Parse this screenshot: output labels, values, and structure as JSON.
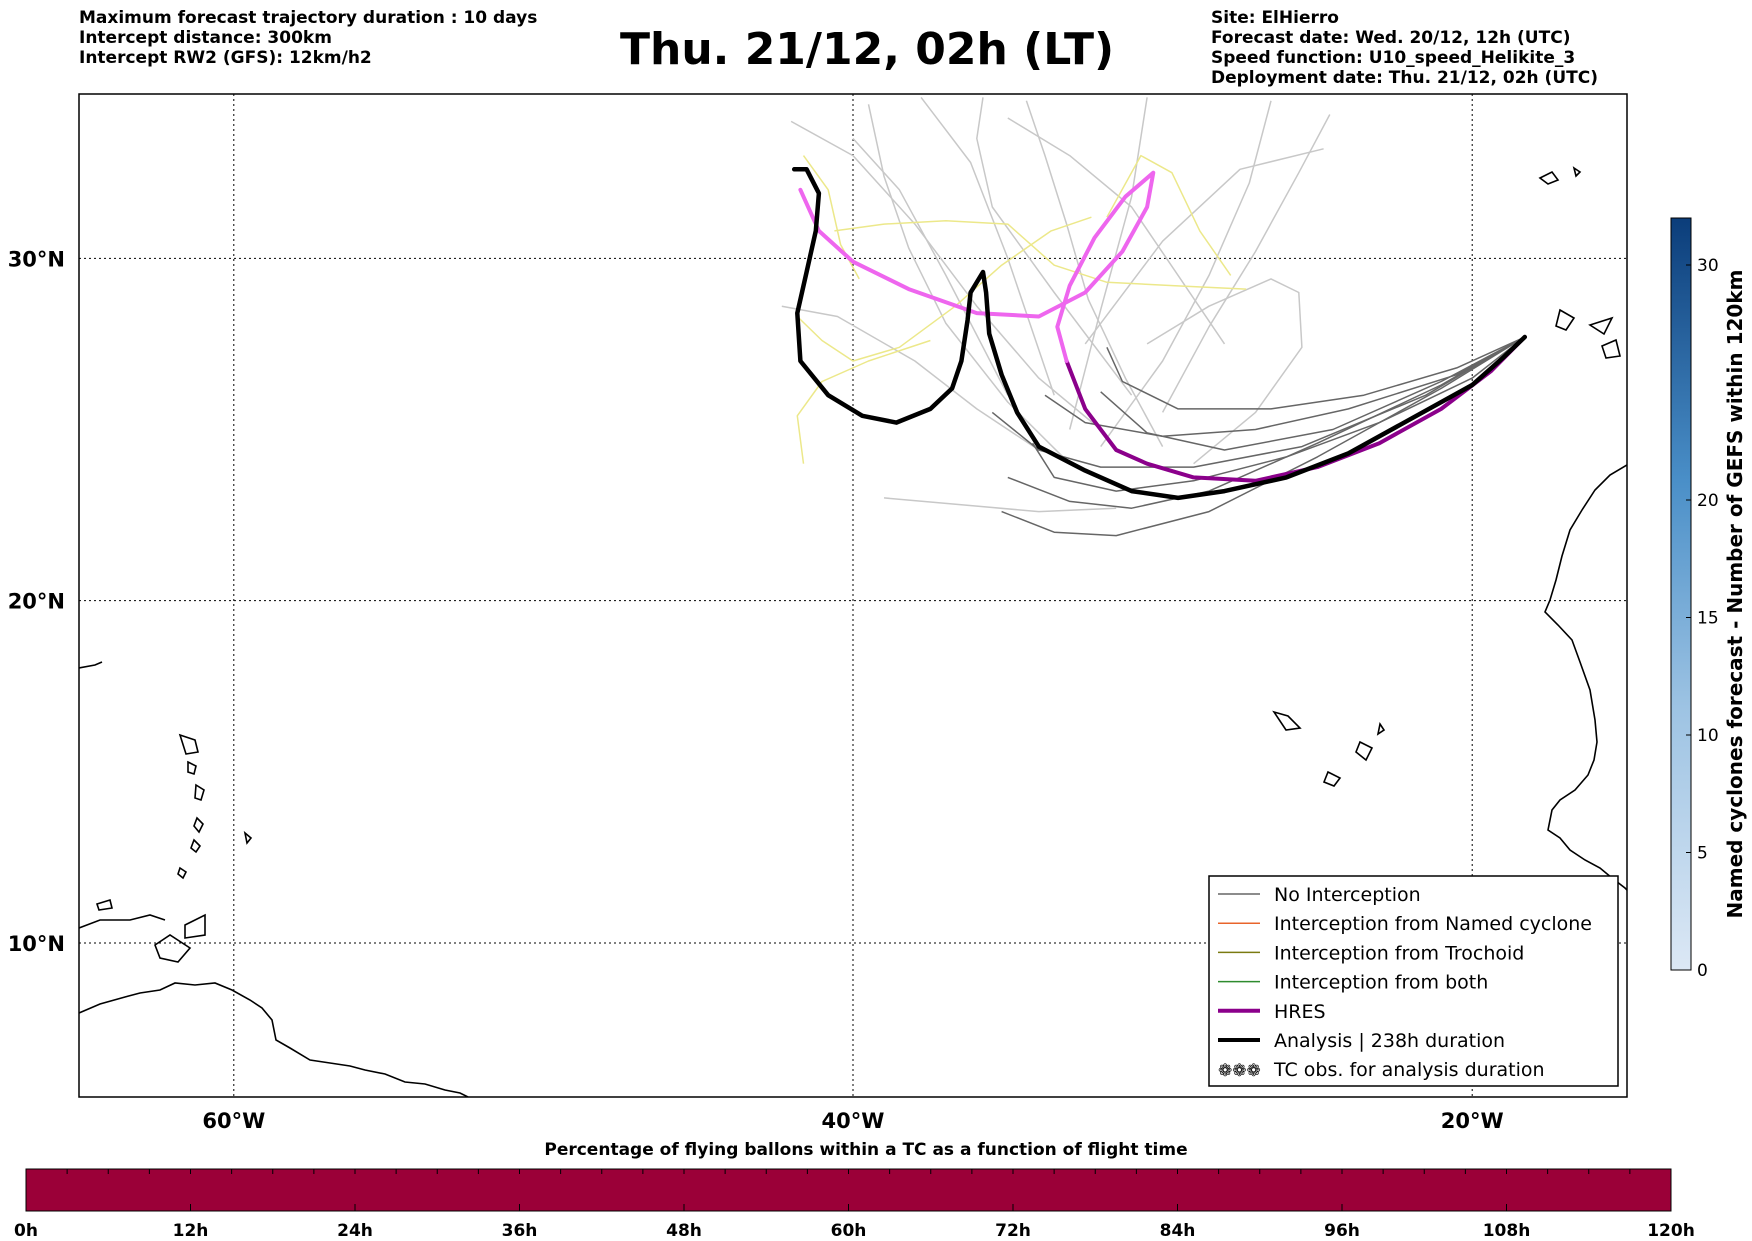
{
  "header": {
    "left_lines": [
      "Maximum forecast trajectory duration : 10 days",
      "Intercept distance: 300km",
      "Intercept RW2 (GFS):  12km/h2"
    ],
    "right_lines": [
      "Site: ElHierro",
      "Forecast date: Wed. 20/12, 12h (UTC)",
      "Speed function: U10_speed_Helikite_3",
      "Deployment date: Thu. 21/12, 02h (UTC)"
    ],
    "title": "Thu. 21/12, 02h (LT)"
  },
  "map": {
    "extent": {
      "lon_min": -65,
      "lon_max": -15,
      "lat_min": 5.5,
      "lat_max": 34.8
    },
    "lon_labels": [
      {
        "lon": -60,
        "text": "60°W"
      },
      {
        "lon": -40,
        "text": "40°W"
      },
      {
        "lon": -20,
        "text": "20°W"
      }
    ],
    "lat_labels": [
      {
        "lat": 30,
        "text": "30°N"
      },
      {
        "lat": 20,
        "text": "20°N"
      },
      {
        "lat": 10,
        "text": "10°N"
      }
    ],
    "grid": true,
    "colors": {
      "no_interception": "#666666",
      "named_cyclone": "#e8642b",
      "trochoid": "#7a7a10",
      "both": "#2e8b2e",
      "hres": "#8b008b",
      "hres_late": "#ee66ee",
      "analysis": "#000000",
      "ensemble_light": "#c8c8c8",
      "ensemble_yellow": "#ece88a"
    },
    "tracks": {
      "analysis": [
        [
          -18.3,
          27.7
        ],
        [
          -19,
          27.1
        ],
        [
          -20,
          26.3
        ],
        [
          -22,
          25.3
        ],
        [
          -24,
          24.3
        ],
        [
          -26,
          23.6
        ],
        [
          -28,
          23.2
        ],
        [
          -29.5,
          23.0
        ],
        [
          -31,
          23.2
        ],
        [
          -32.5,
          23.8
        ],
        [
          -34,
          24.5
        ],
        [
          -34.7,
          25.5
        ],
        [
          -35.2,
          26.6
        ],
        [
          -35.6,
          27.8
        ],
        [
          -35.7,
          29.0
        ],
        [
          -35.8,
          29.6
        ],
        [
          -36.2,
          29.0
        ],
        [
          -36.3,
          28.2
        ],
        [
          -36.5,
          27.0
        ],
        [
          -36.8,
          26.2
        ],
        [
          -37.5,
          25.6
        ],
        [
          -38.6,
          25.2
        ],
        [
          -39.7,
          25.4
        ],
        [
          -40.8,
          26.0
        ],
        [
          -41.7,
          27.0
        ],
        [
          -41.8,
          28.4
        ],
        [
          -41.5,
          29.6
        ],
        [
          -41.2,
          30.8
        ],
        [
          -41.1,
          31.9
        ],
        [
          -41.5,
          32.6
        ],
        [
          -41.9,
          32.6
        ]
      ],
      "hres": [
        [
          -18.3,
          27.7
        ],
        [
          -19.4,
          26.7
        ],
        [
          -21,
          25.6
        ],
        [
          -23,
          24.6
        ],
        [
          -25,
          23.9
        ],
        [
          -27,
          23.5
        ],
        [
          -29,
          23.6
        ],
        [
          -30.5,
          24.0
        ],
        [
          -31.5,
          24.4
        ],
        [
          -32.5,
          25.6
        ],
        [
          -33.1,
          27.0
        ],
        [
          -33.4,
          28.0
        ],
        [
          -33.0,
          29.2
        ],
        [
          -32.2,
          30.6
        ],
        [
          -31.2,
          31.8
        ],
        [
          -30.3,
          32.5
        ],
        [
          -30.5,
          31.5
        ],
        [
          -31.3,
          30.2
        ],
        [
          -32.5,
          29.0
        ],
        [
          -34.0,
          28.3
        ],
        [
          -36.0,
          28.4
        ],
        [
          -38.2,
          29.1
        ],
        [
          -40.0,
          29.9
        ],
        [
          -41.1,
          30.8
        ],
        [
          -41.7,
          32.0
        ]
      ],
      "ensemble_dark": [
        [
          [
            -18.3,
            27.7
          ],
          [
            -20,
            26.5
          ],
          [
            -23,
            25.2
          ],
          [
            -26,
            24.2
          ],
          [
            -29,
            23.5
          ],
          [
            -31.5,
            23.2
          ],
          [
            -33.5,
            23.6
          ],
          [
            -34.2,
            24.6
          ]
        ],
        [
          [
            -18.3,
            27.7
          ],
          [
            -20.5,
            26.6
          ],
          [
            -24,
            25.6
          ],
          [
            -27,
            25.0
          ],
          [
            -30,
            24.8
          ],
          [
            -32.5,
            25.2
          ],
          [
            -33.8,
            26.0
          ]
        ],
        [
          [
            -18.3,
            27.7
          ],
          [
            -21,
            26.3
          ],
          [
            -25,
            24.6
          ],
          [
            -28.5,
            23.2
          ],
          [
            -31,
            22.7
          ],
          [
            -33,
            22.9
          ],
          [
            -35,
            23.6
          ]
        ],
        [
          [
            -18.3,
            27.7
          ],
          [
            -21,
            26.2
          ],
          [
            -25,
            24.2
          ],
          [
            -28.5,
            22.6
          ],
          [
            -31.5,
            21.9
          ],
          [
            -33.5,
            22.0
          ],
          [
            -35.2,
            22.6
          ]
        ],
        [
          [
            -18.3,
            27.7
          ],
          [
            -20.5,
            26.8
          ],
          [
            -23.5,
            26.0
          ],
          [
            -26.5,
            25.6
          ],
          [
            -29.5,
            25.6
          ],
          [
            -31.3,
            26.4
          ],
          [
            -31.8,
            27.4
          ]
        ],
        [
          [
            -18.3,
            27.7
          ],
          [
            -21.5,
            26.0
          ],
          [
            -25.5,
            24.5
          ],
          [
            -29,
            23.9
          ],
          [
            -32,
            23.9
          ],
          [
            -34,
            24.4
          ],
          [
            -35.5,
            25.5
          ]
        ],
        [
          [
            -18.3,
            27.7
          ],
          [
            -21,
            26.4
          ],
          [
            -24.5,
            25.0
          ],
          [
            -28,
            24.4
          ],
          [
            -30.5,
            24.9
          ],
          [
            -32,
            26.1
          ]
        ]
      ],
      "ensemble_light": [
        [
          [
            -30,
            24.5
          ],
          [
            -31.2,
            26.5
          ],
          [
            -32.4,
            28.8
          ],
          [
            -33.1,
            31.0
          ],
          [
            -33.8,
            33.0
          ],
          [
            -34.4,
            34.6
          ]
        ],
        [
          [
            -28,
            27.5
          ],
          [
            -29.5,
            29.5
          ],
          [
            -31,
            31.5
          ],
          [
            -33,
            33.0
          ],
          [
            -35,
            34.1
          ]
        ],
        [
          [
            -32,
            25.0
          ],
          [
            -34,
            26.5
          ],
          [
            -36,
            28.6
          ],
          [
            -38,
            31.0
          ],
          [
            -40,
            33.0
          ],
          [
            -42,
            34.0
          ]
        ],
        [
          [
            -31,
            26.0
          ],
          [
            -33.5,
            29.0
          ],
          [
            -35.5,
            31.5
          ],
          [
            -36,
            33.5
          ],
          [
            -35.8,
            34.7
          ]
        ],
        [
          [
            -30,
            25.5
          ],
          [
            -28.5,
            28.0
          ],
          [
            -27.0,
            30.2
          ],
          [
            -25.6,
            32.5
          ],
          [
            -24.6,
            34.2
          ]
        ],
        [
          [
            -34,
            24.4
          ],
          [
            -36,
            25.6
          ],
          [
            -38,
            27.0
          ],
          [
            -40.5,
            28.3
          ],
          [
            -42.3,
            28.6
          ]
        ],
        [
          [
            -33,
            24.0
          ],
          [
            -35,
            25.8
          ],
          [
            -37,
            28.1
          ],
          [
            -38.2,
            30.3
          ],
          [
            -39,
            32.4
          ],
          [
            -39.5,
            34.5
          ]
        ],
        [
          [
            -31.5,
            22.7
          ],
          [
            -34,
            22.6
          ],
          [
            -36.5,
            22.8
          ],
          [
            -39,
            23.0
          ]
        ],
        [
          [
            -29,
            24.0
          ],
          [
            -27,
            25.5
          ],
          [
            -25.5,
            27.4
          ],
          [
            -25.6,
            29.0
          ],
          [
            -26.5,
            29.4
          ],
          [
            -28.5,
            28.6
          ],
          [
            -30.5,
            27.5
          ]
        ],
        [
          [
            -32,
            24.5
          ],
          [
            -30,
            27.0
          ],
          [
            -28.5,
            29.5
          ],
          [
            -27.2,
            32.2
          ],
          [
            -26.5,
            34.6
          ]
        ],
        [
          [
            -33,
            25.0
          ],
          [
            -32,
            28.5
          ],
          [
            -31,
            31.8
          ],
          [
            -30.5,
            34.7
          ]
        ],
        [
          [
            -32.5,
            27.5
          ],
          [
            -30,
            30.5
          ],
          [
            -27.5,
            32.6
          ],
          [
            -24.8,
            33.2
          ]
        ],
        [
          [
            -35,
            26.0
          ],
          [
            -37,
            29.5
          ],
          [
            -38.5,
            32.0
          ],
          [
            -40,
            33.5
          ]
        ],
        [
          [
            -33.5,
            26.0
          ],
          [
            -35,
            30.0
          ],
          [
            -36.2,
            32.8
          ],
          [
            -37.8,
            34.7
          ]
        ]
      ],
      "ensemble_yellow": [
        [
          [
            -41.8,
            28.3
          ],
          [
            -41,
            27.6
          ],
          [
            -40,
            27.0
          ],
          [
            -38.5,
            27.4
          ],
          [
            -36.7,
            28.6
          ],
          [
            -35.2,
            29.8
          ],
          [
            -33.6,
            30.8
          ],
          [
            -32.3,
            31.2
          ]
        ],
        [
          [
            -41.6,
            24.0
          ],
          [
            -41.8,
            25.4
          ],
          [
            -41.0,
            26.4
          ],
          [
            -39.5,
            27.0
          ],
          [
            -37.5,
            27.6
          ]
        ],
        [
          [
            -40.6,
            30.8
          ],
          [
            -39,
            31.0
          ],
          [
            -37,
            31.1
          ],
          [
            -35,
            31.0
          ],
          [
            -33.5,
            29.8
          ],
          [
            -31.8,
            29.3
          ],
          [
            -29.6,
            29.2
          ],
          [
            -27.3,
            29.1
          ]
        ],
        [
          [
            -31.8,
            31.2
          ],
          [
            -30.7,
            33.0
          ],
          [
            -29.7,
            32.5
          ],
          [
            -28.8,
            30.8
          ],
          [
            -27.8,
            29.5
          ]
        ],
        [
          [
            -41.6,
            33.0
          ],
          [
            -40.8,
            32.0
          ],
          [
            -40.4,
            30.4
          ],
          [
            -39.8,
            29.4
          ]
        ]
      ]
    }
  },
  "legend": {
    "items": [
      {
        "label": "No Interception",
        "style": "no_interception"
      },
      {
        "label": "Interception from Named cyclone",
        "style": "named_cyclone"
      },
      {
        "label": "Interception from Trochoid",
        "style": "trochoid"
      },
      {
        "label": "Interception from both",
        "style": "both"
      },
      {
        "label": "HRES",
        "style": "hres"
      },
      {
        "label": "Analysis | 238h duration",
        "style": "analysis"
      },
      {
        "label": "TC obs. for analysis duration",
        "style": "tc_obs",
        "symbol": "❁❁❁"
      }
    ]
  },
  "colorbar_right": {
    "label": "Named cyclones forecast - Number of GEFS within 120km",
    "ticks": [
      "0",
      "5",
      "10",
      "15",
      "20",
      "30"
    ],
    "tick_values": [
      0,
      5,
      10,
      15,
      20,
      30
    ],
    "range": [
      0,
      32
    ],
    "color_low": "#dce8f5",
    "color_high": "#0b3d7a"
  },
  "colorbar_bottom": {
    "title": "Percentage of flying ballons within a TC as a function of flight time",
    "ticks": [
      "0h",
      "12h",
      "24h",
      "36h",
      "48h",
      "60h",
      "72h",
      "84h",
      "96h",
      "108h",
      "120h"
    ],
    "color": "#9b0038"
  }
}
